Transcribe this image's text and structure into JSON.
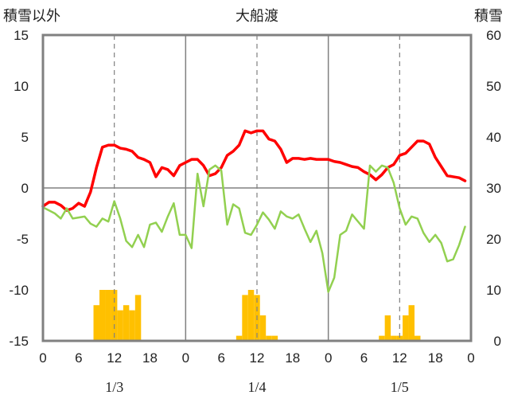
{
  "chart_data": {
    "type": "bar+line",
    "title": "大船渡",
    "ylabel_left": "積雪以外",
    "ylabel_right": "積雪",
    "ylim_left": [
      -15,
      15
    ],
    "ylim_right": [
      0,
      60
    ],
    "yticks_left": [
      15,
      10,
      5,
      0,
      -5,
      -10,
      -15
    ],
    "yticks_right": [
      60,
      50,
      40,
      30,
      20,
      10,
      0
    ],
    "xlim": [
      0,
      72
    ],
    "xtick_labels": [
      "0",
      "6",
      "12",
      "18",
      "0",
      "6",
      "12",
      "18",
      "0",
      "6",
      "12",
      "18",
      "0"
    ],
    "date_labels": [
      "1/3",
      "1/4",
      "1/5"
    ],
    "grid": true,
    "colors": {
      "frame": "#808080",
      "grid": "#808080",
      "bars": "#ffc000",
      "red_line": "#ff0000",
      "green_line": "#92d050",
      "purple_line": "#7030a0"
    },
    "series": [
      {
        "kind": "bar",
        "axis": "right",
        "x": [
          9,
          10,
          11,
          12,
          13,
          14,
          15,
          16,
          33,
          34,
          35,
          36,
          37,
          38,
          39,
          57,
          58,
          59,
          60,
          61,
          62,
          63
        ],
        "values": [
          7,
          10,
          10,
          10,
          6,
          7,
          6,
          9,
          1,
          9,
          10,
          9,
          5,
          1,
          1,
          1,
          5,
          1,
          1,
          5,
          7,
          1
        ]
      },
      {
        "kind": "line",
        "axis": "left",
        "x": [
          0,
          1,
          2,
          3,
          4,
          5,
          6,
          7,
          8,
          9,
          10,
          11,
          12,
          13,
          14,
          15,
          16,
          17,
          18,
          19,
          20,
          21,
          22,
          23,
          24,
          25,
          26,
          27,
          28,
          29,
          30,
          31,
          32,
          33,
          34,
          35,
          36,
          37,
          38,
          39,
          40,
          41,
          42,
          43,
          44,
          45,
          46,
          47,
          48,
          49,
          50,
          51,
          52,
          53,
          54,
          55,
          56,
          57,
          58,
          59,
          60,
          61,
          62,
          63,
          64,
          65,
          66,
          67,
          68,
          69,
          70,
          71
        ],
        "values": [
          -1.8,
          -1.4,
          -1.4,
          -1.7,
          -2.2,
          -2.0,
          -1.5,
          -1.8,
          -0.4,
          2.0,
          4.0,
          4.2,
          4.2,
          3.9,
          3.8,
          3.6,
          3.0,
          2.8,
          2.5,
          1.1,
          2.0,
          1.8,
          1.2,
          2.2,
          2.5,
          2.8,
          2.8,
          2.2,
          1.2,
          1.4,
          2.0,
          3.2,
          3.6,
          4.2,
          5.6,
          5.4,
          5.6,
          5.6,
          4.8,
          4.6,
          3.8,
          2.5,
          2.9,
          2.9,
          2.8,
          2.9,
          2.8,
          2.8,
          2.8,
          2.6,
          2.5,
          2.3,
          2.1,
          2.0,
          1.6,
          1.3,
          0.8,
          1.3,
          2.0,
          2.3,
          3.2,
          3.4,
          4.0,
          4.6,
          4.6,
          4.3,
          3.0,
          2.1,
          1.2,
          1.1,
          1.0,
          0.7
        ]
      },
      {
        "kind": "line",
        "axis": "left",
        "x": [
          0,
          1,
          2,
          3,
          4,
          5,
          6,
          7,
          8,
          9,
          10,
          11,
          12,
          13,
          14,
          15,
          16,
          17,
          18,
          19,
          20,
          21,
          22,
          23,
          24,
          25,
          26,
          27,
          28,
          29,
          30,
          31,
          32,
          33,
          34,
          35,
          36,
          37,
          38,
          39,
          40,
          41,
          42,
          43,
          44,
          45,
          46,
          47,
          48,
          49,
          50,
          51,
          52,
          53,
          54,
          55,
          56,
          57,
          58,
          59,
          60,
          61,
          62,
          63,
          64,
          65,
          66,
          67,
          68,
          69,
          70,
          71
        ],
        "values": [
          -1.9,
          -2.2,
          -2.5,
          -3.0,
          -2.0,
          -3.0,
          -2.9,
          -2.8,
          -3.5,
          -3.8,
          -3.0,
          -3.3,
          -1.3,
          -3.0,
          -5.2,
          -5.8,
          -4.6,
          -5.8,
          -3.6,
          -3.4,
          -4.3,
          -2.8,
          -1.5,
          -4.6,
          -4.6,
          -5.9,
          1.4,
          -1.8,
          1.8,
          2.2,
          1.7,
          -3.6,
          -1.6,
          -2.0,
          -4.4,
          -4.6,
          -3.6,
          -2.4,
          -3.1,
          -4.0,
          -2.3,
          -2.8,
          -3.0,
          -2.6,
          -4.0,
          -5.3,
          -4.2,
          -6.4,
          -10.2,
          -8.8,
          -4.6,
          -4.2,
          -2.6,
          -3.3,
          -4.0,
          2.2,
          1.6,
          2.2,
          2.0,
          0.5,
          -2.0,
          -3.6,
          -2.8,
          -3.0,
          -4.4,
          -5.3,
          -4.6,
          -5.4,
          -7.2,
          -7.0,
          -5.6,
          -3.8
        ]
      },
      {
        "kind": "line",
        "axis": "left",
        "x": [
          0,
          72
        ],
        "values": [
          -15,
          -15
        ]
      }
    ]
  }
}
